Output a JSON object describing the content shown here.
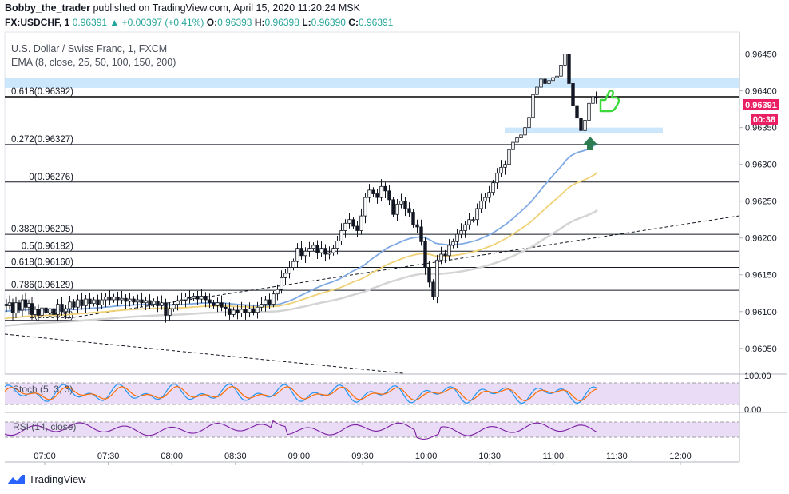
{
  "header": {
    "author": "Bobby_the_trader",
    "published_text": "published on TradingView.com, April 15, 2020 11:20:24 MSK",
    "symbol": "FX:USDCHF, 1",
    "last": "0.96391",
    "change_arrow": "▲",
    "change": "+0.00397 (+0.41%)",
    "open_label": "O:",
    "open": "0.96393",
    "high_label": "H:",
    "high": "0.96398",
    "low_label": "L:",
    "low": "0.96390",
    "close_label": "C:",
    "close": "0.96391"
  },
  "legend": {
    "instrument": "U.S. Dollar / Swiss Franc, 1, FXCM",
    "ema": "EMA (8, close, 25, 50, 100, 150, 200)"
  },
  "indicators": {
    "stoch_label": "Stoch (5, 3, 3)",
    "rsi_label": "RSI (14, close)",
    "stoch_ticks": [
      "100.00",
      "0.00"
    ]
  },
  "price_badge": {
    "price": "0.96391",
    "countdown": "00:38",
    "color": "#e91e63"
  },
  "brand": {
    "name": "TradingView",
    "color": "#2962ff"
  },
  "chart_data": {
    "type": "candlestick",
    "x_ticks": [
      "07:00",
      "07:30",
      "08:00",
      "08:30",
      "09:00",
      "09:30",
      "10:00",
      "10:30",
      "11:00",
      "11:30",
      "12:00"
    ],
    "y_ticks": [
      "0.96450",
      "0.96400",
      "0.96350",
      "0.96300",
      "0.96250",
      "0.96200",
      "0.96150",
      "0.96100",
      "0.96050"
    ],
    "ylim": [
      0.96015,
      0.9648
    ],
    "fib_levels": [
      {
        "label": "0.618(0.96392)",
        "value": 0.96392
      },
      {
        "label": "0.272(0.96327)",
        "value": 0.96327
      },
      {
        "label": "0(0.96276)",
        "value": 0.96276
      },
      {
        "label": "0.382(0.96205)",
        "value": 0.96205
      },
      {
        "label": "0.5(0.96182)",
        "value": 0.96182
      },
      {
        "label": "0.618(0.96160)",
        "value": 0.9616
      },
      {
        "label": "0.786(0.96129)",
        "value": 0.96129
      },
      {
        "label": "1(0.96088)",
        "value": 0.96088
      }
    ],
    "zones": [
      {
        "from": 0.96404,
        "to": 0.96418
      },
      {
        "from": 0.96342,
        "to": 0.9635
      }
    ],
    "ema_colors": [
      "#7fa9e3",
      "#f0d175",
      "#d4d4d4"
    ],
    "last_price": 0.96391,
    "price_path": [
      [
        6,
        0.9611
      ],
      [
        10,
        0.96108
      ],
      [
        14,
        0.96112
      ],
      [
        18,
        0.96098
      ],
      [
        22,
        0.96112
      ],
      [
        26,
        0.96102
      ],
      [
        30,
        0.96116
      ],
      [
        34,
        0.96106
      ],
      [
        38,
        0.96111
      ],
      [
        42,
        0.96096
      ],
      [
        46,
        0.96103
      ],
      [
        50,
        0.96095
      ],
      [
        55,
        0.96105
      ],
      [
        60,
        0.96098
      ],
      [
        65,
        0.96104
      ],
      [
        70,
        0.96096
      ],
      [
        75,
        0.9611
      ],
      [
        80,
        0.961
      ],
      [
        85,
        0.96104
      ],
      [
        90,
        0.96113
      ],
      [
        95,
        0.96106
      ],
      [
        100,
        0.96116
      ],
      [
        105,
        0.96108
      ],
      [
        110,
        0.96117
      ],
      [
        115,
        0.96111
      ],
      [
        120,
        0.96116
      ],
      [
        125,
        0.96109
      ],
      [
        130,
        0.96116
      ],
      [
        135,
        0.9612
      ],
      [
        140,
        0.96116
      ],
      [
        145,
        0.9612
      ],
      [
        150,
        0.96116
      ],
      [
        155,
        0.96118
      ],
      [
        160,
        0.96114
      ],
      [
        165,
        0.96117
      ],
      [
        170,
        0.96113
      ],
      [
        175,
        0.96116
      ],
      [
        180,
        0.96112
      ],
      [
        185,
        0.96115
      ],
      [
        190,
        0.9611
      ],
      [
        195,
        0.96114
      ],
      [
        200,
        0.96108
      ],
      [
        205,
        0.96112
      ],
      [
        210,
        0.96095
      ],
      [
        215,
        0.96104
      ],
      [
        220,
        0.9611
      ],
      [
        225,
        0.96115
      ],
      [
        230,
        0.96116
      ],
      [
        235,
        0.9612
      ],
      [
        240,
        0.96118
      ],
      [
        245,
        0.96121
      ],
      [
        250,
        0.96117
      ],
      [
        255,
        0.96121
      ],
      [
        260,
        0.96116
      ],
      [
        265,
        0.96112
      ],
      [
        270,
        0.96108
      ],
      [
        275,
        0.96112
      ],
      [
        280,
        0.96106
      ],
      [
        285,
        0.96104
      ],
      [
        290,
        0.96096
      ],
      [
        295,
        0.96102
      ],
      [
        300,
        0.96098
      ],
      [
        305,
        0.96103
      ],
      [
        310,
        0.96099
      ],
      [
        315,
        0.96104
      ],
      [
        320,
        0.96099
      ],
      [
        325,
        0.96106
      ],
      [
        330,
        0.9611
      ],
      [
        335,
        0.96116
      ],
      [
        340,
        0.9611
      ],
      [
        345,
        0.96124
      ],
      [
        350,
        0.9613
      ],
      [
        355,
        0.96146
      ],
      [
        360,
        0.96152
      ],
      [
        365,
        0.9616
      ],
      [
        370,
        0.96168
      ],
      [
        375,
        0.96186
      ],
      [
        380,
        0.96176
      ],
      [
        385,
        0.96182
      ],
      [
        390,
        0.96186
      ],
      [
        395,
        0.9619
      ],
      [
        400,
        0.9618
      ],
      [
        405,
        0.96186
      ],
      [
        410,
        0.96178
      ],
      [
        415,
        0.9618
      ],
      [
        420,
        0.96186
      ],
      [
        425,
        0.96196
      ],
      [
        430,
        0.9621
      ],
      [
        435,
        0.9622
      ],
      [
        440,
        0.96225
      ],
      [
        445,
        0.96216
      ],
      [
        450,
        0.9621
      ],
      [
        455,
        0.9623
      ],
      [
        460,
        0.96255
      ],
      [
        465,
        0.96265
      ],
      [
        470,
        0.9626
      ],
      [
        475,
        0.96255
      ],
      [
        480,
        0.9627
      ],
      [
        485,
        0.96264
      ],
      [
        490,
        0.96252
      ],
      [
        495,
        0.96232
      ],
      [
        500,
        0.96246
      ],
      [
        505,
        0.9625
      ],
      [
        510,
        0.9624
      ],
      [
        515,
        0.96235
      ],
      [
        520,
        0.96218
      ],
      [
        525,
        0.96215
      ],
      [
        530,
        0.96195
      ],
      [
        535,
        0.9616
      ],
      [
        540,
        0.9614
      ],
      [
        545,
        0.9612
      ],
      [
        550,
        0.9617
      ],
      [
        555,
        0.96178
      ],
      [
        560,
        0.96176
      ],
      [
        565,
        0.9619
      ],
      [
        570,
        0.96195
      ],
      [
        575,
        0.96205
      ],
      [
        580,
        0.9621
      ],
      [
        585,
        0.96218
      ],
      [
        590,
        0.96225
      ],
      [
        595,
        0.96225
      ],
      [
        600,
        0.9624
      ],
      [
        605,
        0.9625
      ],
      [
        610,
        0.96255
      ],
      [
        615,
        0.96262
      ],
      [
        620,
        0.96275
      ],
      [
        625,
        0.96288
      ],
      [
        630,
        0.96296
      ],
      [
        635,
        0.963
      ],
      [
        640,
        0.9632
      ],
      [
        645,
        0.9633
      ],
      [
        650,
        0.96336
      ],
      [
        655,
        0.9634
      ],
      [
        660,
        0.9635
      ],
      [
        665,
        0.96364
      ],
      [
        670,
        0.96395
      ],
      [
        675,
        0.96405
      ],
      [
        680,
        0.96416
      ],
      [
        685,
        0.9641
      ],
      [
        690,
        0.96414
      ],
      [
        695,
        0.96418
      ],
      [
        700,
        0.9642
      ],
      [
        705,
        0.96435
      ],
      [
        710,
        0.9645
      ],
      [
        715,
        0.9641
      ],
      [
        720,
        0.9638
      ],
      [
        725,
        0.96363
      ],
      [
        730,
        0.96346
      ],
      [
        735,
        0.9636
      ],
      [
        740,
        0.96383
      ],
      [
        745,
        0.96392
      ],
      [
        748,
        0.96391
      ]
    ]
  }
}
